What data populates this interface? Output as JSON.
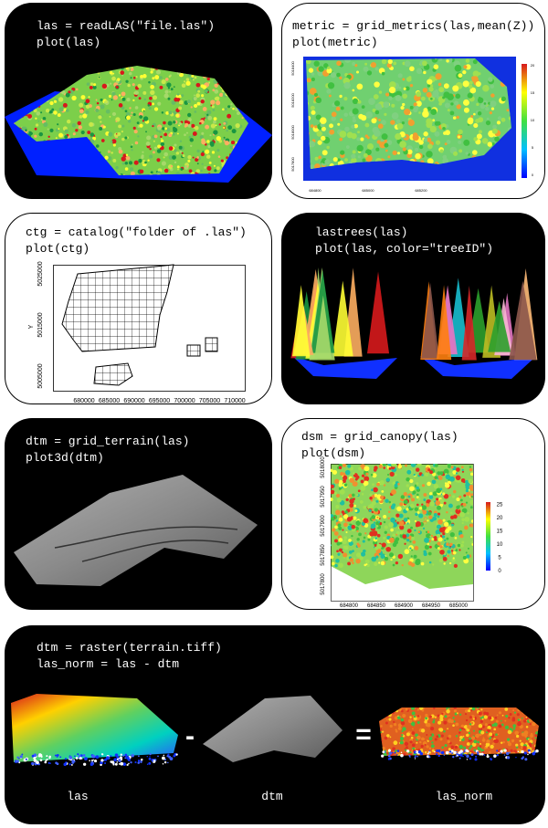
{
  "panels": [
    {
      "code": [
        "las = readLAS(\"file.las\")",
        "plot(las)"
      ]
    },
    {
      "code": [
        "metric = grid_metrics(las,mean(Z))",
        "plot(metric)"
      ],
      "plot": {
        "xticks": [
          684800,
          685000,
          685200
        ],
        "yticks": [
          5017800,
          5018000,
          5018200,
          5018400
        ],
        "legend_ticks": [
          0,
          5,
          10,
          15,
          20
        ]
      }
    },
    {
      "code": [
        "ctg = catalog(\"folder of .las\")",
        "plot(ctg)"
      ],
      "plot": {
        "ylabel": "Y",
        "xticks": [
          680000,
          685000,
          690000,
          695000,
          700000,
          705000,
          710000
        ],
        "yticks": [
          5005000,
          5015000,
          5025000
        ]
      }
    },
    {
      "code": [
        "lastrees(las)",
        "plot(las, color=\"treeID\")"
      ]
    },
    {
      "code": [
        "dtm = grid_terrain(las)",
        "plot3d(dtm)"
      ]
    },
    {
      "code": [
        "dsm = grid_canopy(las)",
        "plot(dsm)"
      ],
      "plot": {
        "xticks": [
          684800,
          684850,
          684900,
          684950,
          685000
        ],
        "yticks": [
          5017800,
          5017850,
          5017900,
          5017950,
          5018000
        ],
        "legend_ticks": [
          0,
          5,
          10,
          15,
          20,
          25
        ]
      }
    },
    {
      "code": [
        "dtm = raster(terrain.tiff)",
        "las_norm = las - dtm"
      ],
      "operators": [
        "-",
        "="
      ],
      "labels": [
        "las",
        "dtm",
        "las_norm"
      ]
    }
  ]
}
